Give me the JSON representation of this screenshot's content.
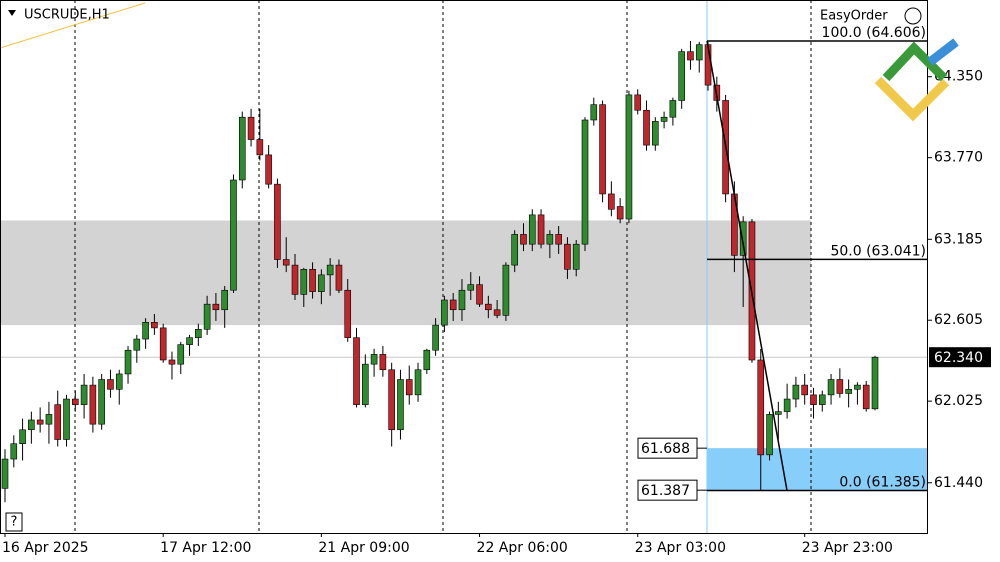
{
  "chart_data": {
    "type": "candlestick",
    "title": "USCRUDE,H1",
    "easy_order_label": "EasyOrder",
    "ylim": [
      61.08,
      64.9
    ],
    "yticks": [
      {
        "value": 64.35,
        "label": "64.350"
      },
      {
        "value": 63.77,
        "label": "63.770"
      },
      {
        "value": 63.185,
        "label": "63.185"
      },
      {
        "value": 62.605,
        "label": "62.605"
      },
      {
        "value": 62.025,
        "label": "62.025"
      },
      {
        "value": 61.44,
        "label": "61.440"
      }
    ],
    "categories": [
      "16 Apr 2025",
      null,
      null,
      null,
      null,
      null,
      null,
      null,
      null,
      null,
      null,
      null,
      null,
      null,
      null,
      null,
      null,
      null,
      "17 Apr 12:00",
      null,
      null,
      null,
      null,
      null,
      null,
      null,
      null,
      null,
      null,
      null,
      null,
      null,
      null,
      null,
      null,
      null,
      "21 Apr 09:00",
      null,
      null,
      null,
      null,
      null,
      null,
      null,
      null,
      null,
      null,
      null,
      null,
      null,
      null,
      null,
      null,
      null,
      "22 Apr 06:00",
      null,
      null,
      null,
      null,
      null,
      null,
      null,
      null,
      null,
      null,
      null,
      null,
      null,
      null,
      null,
      null,
      null,
      "23 Apr 03:00",
      null,
      null,
      null,
      null,
      null,
      null,
      null,
      null,
      null,
      null,
      null,
      null,
      null,
      null,
      null,
      null,
      null,
      null,
      "23 Apr 23:00",
      null,
      null,
      null,
      null,
      null,
      null,
      null,
      null
    ],
    "up_color": "#2e8b2e",
    "down_color": "#c0272d",
    "ohlc": [
      [
        61.4,
        61.68,
        61.3,
        61.61
      ],
      [
        61.61,
        61.78,
        61.55,
        61.72
      ],
      [
        61.72,
        61.9,
        61.6,
        61.82
      ],
      [
        61.82,
        61.95,
        61.72,
        61.89
      ],
      [
        61.89,
        61.98,
        61.8,
        61.86
      ],
      [
        61.86,
        62.02,
        61.72,
        61.93
      ],
      [
        62.0,
        62.1,
        61.7,
        61.75
      ],
      [
        61.75,
        62.07,
        61.7,
        62.04
      ],
      [
        62.04,
        62.1,
        61.95,
        62.0
      ],
      [
        62.0,
        62.22,
        61.9,
        62.14
      ],
      [
        62.14,
        62.2,
        61.8,
        61.86
      ],
      [
        61.86,
        62.22,
        61.82,
        62.18
      ],
      [
        62.18,
        62.25,
        62.05,
        62.11
      ],
      [
        62.11,
        62.25,
        62.0,
        62.22
      ],
      [
        62.22,
        62.42,
        62.15,
        62.39
      ],
      [
        62.39,
        62.5,
        62.3,
        62.47
      ],
      [
        62.47,
        62.62,
        62.4,
        62.59
      ],
      [
        62.59,
        62.65,
        62.5,
        62.55
      ],
      [
        62.55,
        62.58,
        62.3,
        62.32
      ],
      [
        62.32,
        62.38,
        62.18,
        62.29
      ],
      [
        62.29,
        62.45,
        62.22,
        62.43
      ],
      [
        62.43,
        62.5,
        62.35,
        62.48
      ],
      [
        62.48,
        62.58,
        62.42,
        62.54
      ],
      [
        62.54,
        62.78,
        62.5,
        62.72
      ],
      [
        62.72,
        62.8,
        62.6,
        62.68
      ],
      [
        62.68,
        62.85,
        62.55,
        62.82
      ],
      [
        62.82,
        63.65,
        62.8,
        63.61
      ],
      [
        63.61,
        64.1,
        63.55,
        64.06
      ],
      [
        64.06,
        64.12,
        63.85,
        63.9
      ],
      [
        63.9,
        64.12,
        63.75,
        63.79
      ],
      [
        63.79,
        63.86,
        63.55,
        63.58
      ],
      [
        63.58,
        63.62,
        62.98,
        63.04
      ],
      [
        63.04,
        63.2,
        62.95,
        63.0
      ],
      [
        63.0,
        63.08,
        62.75,
        62.79
      ],
      [
        62.79,
        62.98,
        62.7,
        62.97
      ],
      [
        62.97,
        63.02,
        62.76,
        62.81
      ],
      [
        62.81,
        62.97,
        62.72,
        62.93
      ],
      [
        62.93,
        63.05,
        62.78,
        63.0
      ],
      [
        63.0,
        63.04,
        62.8,
        62.82
      ],
      [
        62.82,
        62.9,
        62.45,
        62.48
      ],
      [
        62.48,
        62.55,
        61.98,
        62.0
      ],
      [
        62.0,
        62.36,
        61.98,
        62.29
      ],
      [
        62.29,
        62.4,
        62.2,
        62.36
      ],
      [
        62.36,
        62.42,
        62.2,
        62.25
      ],
      [
        62.25,
        62.3,
        61.7,
        61.82
      ],
      [
        61.82,
        62.25,
        61.75,
        62.18
      ],
      [
        62.18,
        62.28,
        62.0,
        62.07
      ],
      [
        62.07,
        62.3,
        62.02,
        62.25
      ],
      [
        62.25,
        62.4,
        62.22,
        62.39
      ],
      [
        62.39,
        62.62,
        62.35,
        62.57
      ],
      [
        62.57,
        62.78,
        62.52,
        62.75
      ],
      [
        62.75,
        62.8,
        62.6,
        62.68
      ],
      [
        62.68,
        62.9,
        62.6,
        62.82
      ],
      [
        62.82,
        62.95,
        62.75,
        62.86
      ],
      [
        62.86,
        62.92,
        62.7,
        62.72
      ],
      [
        62.72,
        62.78,
        62.62,
        62.68
      ],
      [
        62.68,
        62.75,
        62.62,
        62.64
      ],
      [
        62.64,
        63.02,
        62.6,
        63.0
      ],
      [
        63.0,
        63.25,
        62.95,
        63.22
      ],
      [
        63.22,
        63.3,
        63.1,
        63.15
      ],
      [
        63.15,
        63.4,
        63.1,
        63.36
      ],
      [
        63.36,
        63.4,
        63.12,
        63.15
      ],
      [
        63.15,
        63.25,
        63.05,
        63.22
      ],
      [
        63.22,
        63.28,
        63.08,
        63.15
      ],
      [
        63.15,
        63.2,
        62.9,
        62.97
      ],
      [
        62.97,
        63.18,
        62.92,
        63.15
      ],
      [
        63.15,
        64.06,
        63.1,
        64.04
      ],
      [
        64.04,
        64.2,
        64.0,
        64.15
      ],
      [
        64.15,
        64.18,
        63.45,
        63.51
      ],
      [
        63.51,
        63.6,
        63.35,
        63.4
      ],
      [
        63.42,
        63.48,
        63.3,
        63.33
      ],
      [
        63.33,
        64.25,
        63.3,
        64.22
      ],
      [
        64.22,
        64.26,
        64.08,
        64.11
      ],
      [
        64.11,
        64.18,
        63.82,
        63.86
      ],
      [
        63.86,
        64.06,
        63.82,
        64.03
      ],
      [
        64.03,
        64.1,
        63.98,
        64.06
      ],
      [
        64.06,
        64.2,
        64.0,
        64.18
      ],
      [
        64.18,
        64.55,
        64.12,
        64.53
      ],
      [
        64.53,
        64.606,
        64.4,
        64.47
      ],
      [
        64.47,
        64.6,
        64.38,
        64.58
      ],
      [
        64.58,
        64.6,
        64.25,
        64.29
      ],
      [
        64.29,
        64.35,
        64.1,
        64.18
      ],
      [
        64.18,
        64.22,
        63.45,
        63.51
      ],
      [
        63.51,
        63.6,
        62.95,
        63.07
      ],
      [
        63.07,
        63.35,
        62.7,
        63.31
      ],
      [
        63.31,
        63.33,
        62.3,
        62.32
      ],
      [
        62.32,
        62.4,
        61.385,
        61.64
      ],
      [
        61.64,
        61.95,
        61.6,
        61.93
      ],
      [
        61.93,
        62.02,
        61.75,
        61.95
      ],
      [
        61.95,
        62.15,
        61.9,
        62.04
      ],
      [
        62.04,
        62.2,
        61.98,
        62.14
      ],
      [
        62.14,
        62.22,
        62.0,
        62.07
      ],
      [
        62.07,
        62.12,
        61.9,
        62.0
      ],
      [
        62.0,
        62.1,
        61.95,
        62.07
      ],
      [
        62.07,
        62.22,
        62.0,
        62.18
      ],
      [
        62.18,
        62.26,
        62.05,
        62.08
      ],
      [
        62.08,
        62.18,
        61.98,
        62.11
      ],
      [
        62.11,
        62.16,
        62.0,
        62.14
      ],
      [
        62.14,
        62.17,
        61.95,
        61.97
      ],
      [
        61.97,
        62.35,
        61.96,
        62.34
      ]
    ],
    "zone": {
      "low": 62.57,
      "high": 63.32,
      "color": "#d3d3d3"
    },
    "fibonacci": {
      "levels": [
        {
          "value": 64.606,
          "label": "100.0 (64.606)"
        },
        {
          "value": 63.041,
          "label": "50.0 (63.041)"
        },
        {
          "value": 61.385,
          "label": "0.0 (61.385)"
        }
      ]
    },
    "target_zone": {
      "top": 61.688,
      "bottom": 61.387,
      "color": "#87cefa"
    },
    "last_price": {
      "value": 62.34,
      "label": "62.340"
    }
  }
}
